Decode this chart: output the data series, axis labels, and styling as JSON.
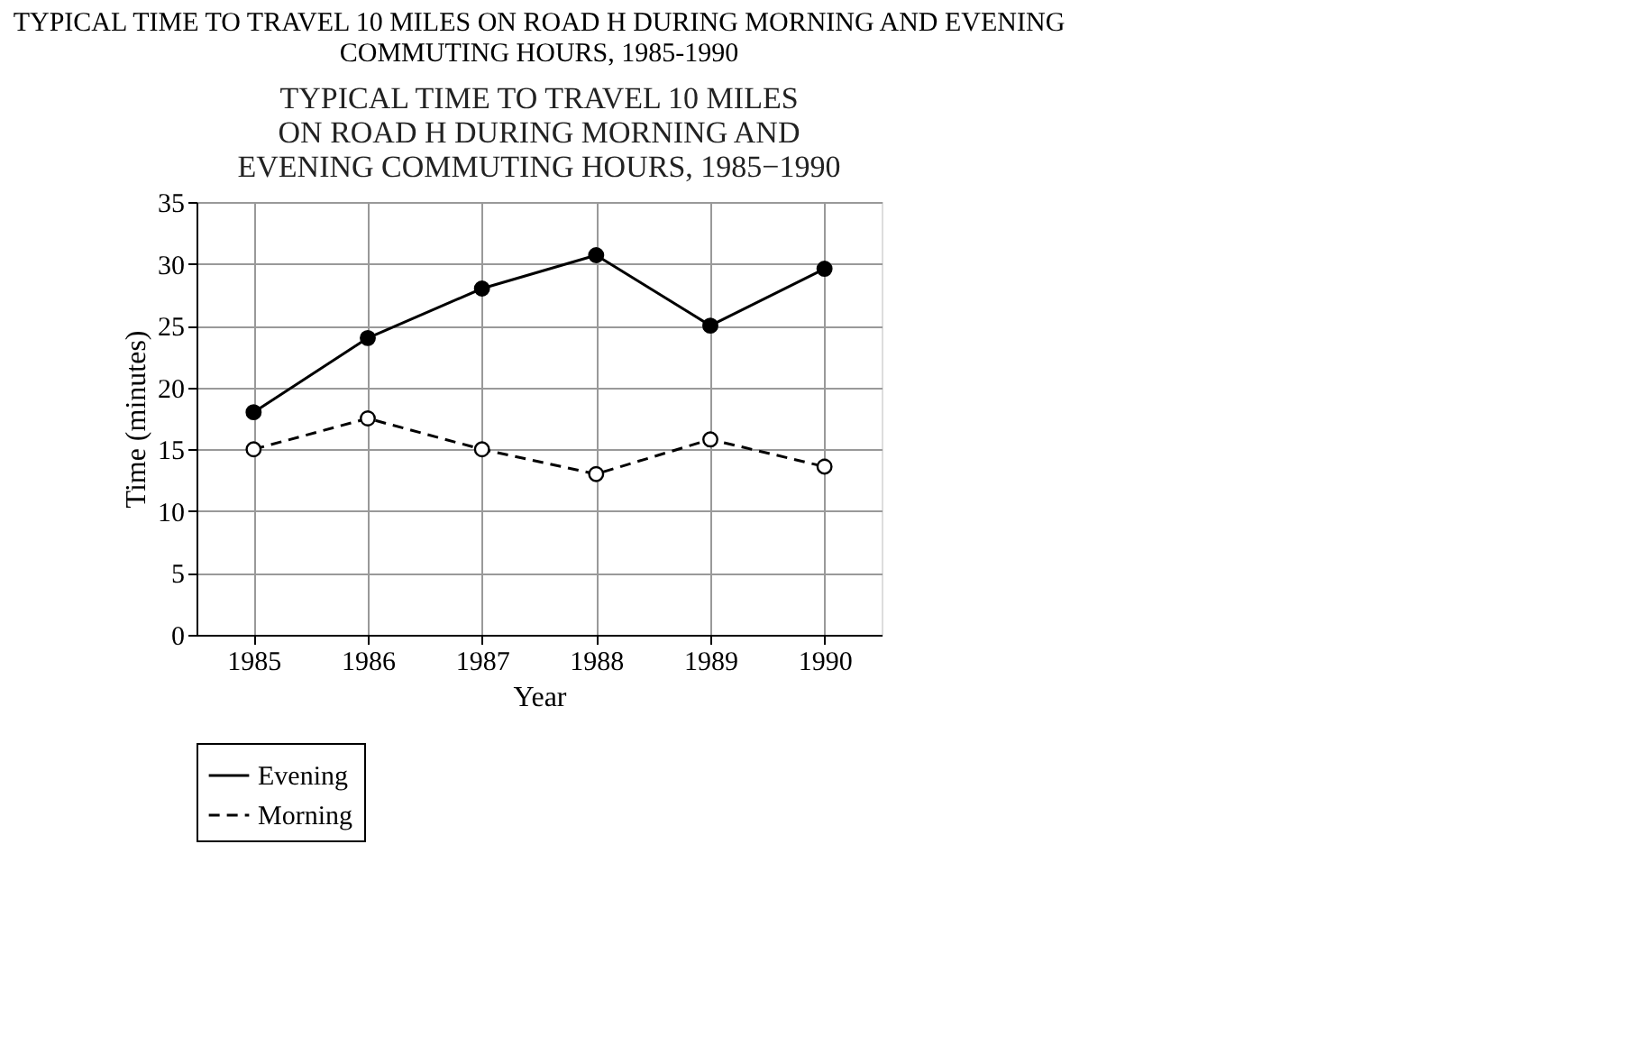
{
  "chart_data": {
    "type": "line",
    "title": "TYPICAL TIME TO TRAVEL 10 MILES ON ROAD H DURING MORNING AND EVENING\nCOMMUTING HOURS, 1985-1990",
    "subtitle": "TYPICAL TIME TO TRAVEL 10 MILES\nON ROAD H DURING MORNING AND\nEVENING COMMUTING HOURS, 1985−1990",
    "xlabel": "Year",
    "ylabel": "Time (minutes)",
    "categories": [
      "1985",
      "1986",
      "1987",
      "1988",
      "1989",
      "1990"
    ],
    "series": [
      {
        "name": "Evening",
        "color": "#000000",
        "line_style": "solid",
        "values": [
          18,
          24,
          28,
          30.7,
          25,
          29.6
        ]
      },
      {
        "name": "Morning",
        "color": "#000000",
        "line_style": "dashed",
        "values": [
          15,
          17.5,
          15,
          13,
          15.8,
          13.6
        ]
      }
    ],
    "ylim": [
      0,
      35
    ],
    "yticks": [
      0,
      5,
      10,
      15,
      20,
      25,
      30,
      35
    ],
    "grid": true,
    "legend": "bottom",
    "marker": "circle"
  }
}
